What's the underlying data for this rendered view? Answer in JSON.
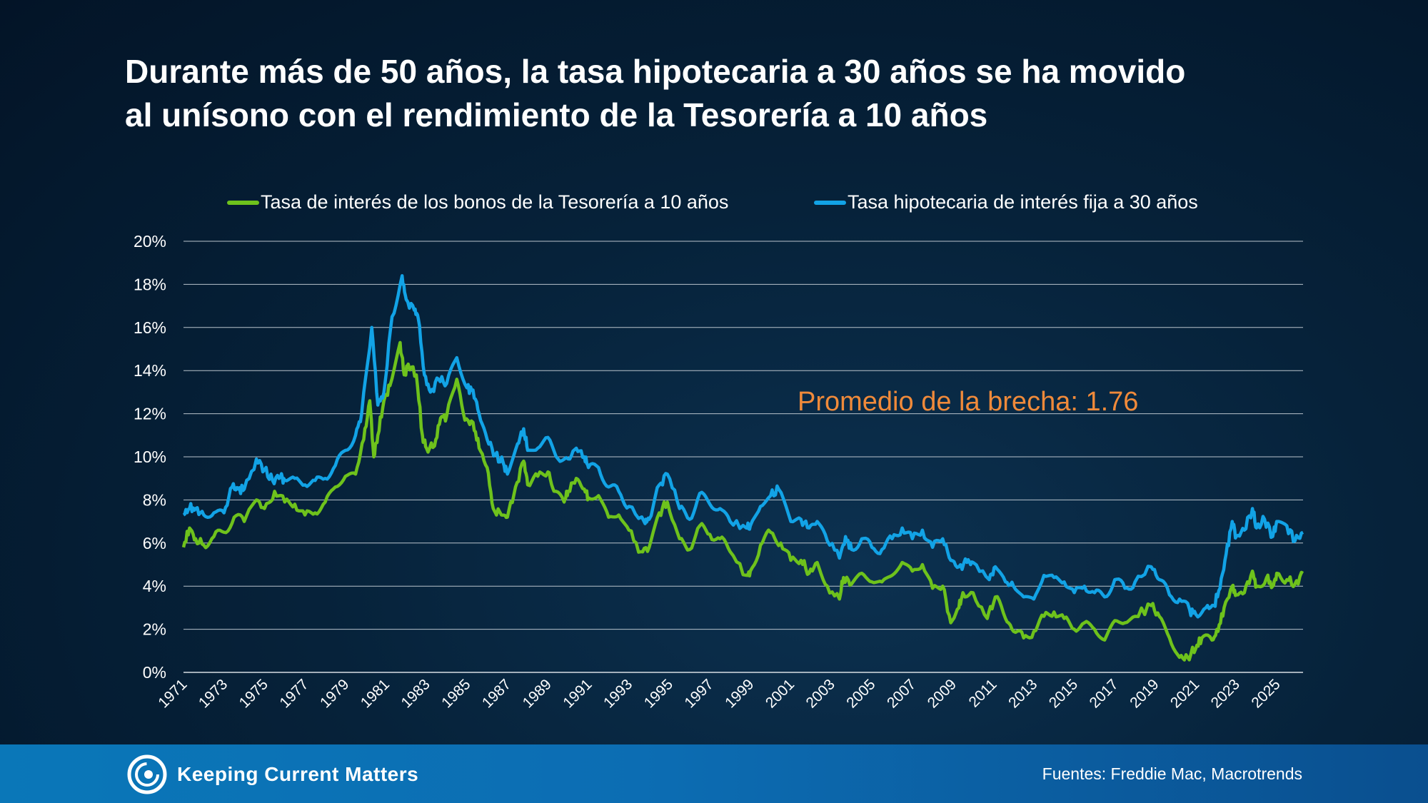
{
  "header": {
    "title_line1": "Durante más de 50 años, la tasa hipotecaria a 30 años se ha movido",
    "title_line2": "al unísono con el rendimiento de la Tesorería a 10 años"
  },
  "footer": {
    "brand": "Keeping Current Matters",
    "sources": "Fuentes: Freddie Mac, Macrotrends"
  },
  "colors": {
    "treasury": "#6ec21c",
    "mortgage": "#12a3e6",
    "annotation": "#f08a3a",
    "gridline": "#b9c3cc"
  },
  "chart_data": {
    "type": "line",
    "title": "",
    "xlabel": "",
    "ylabel": "",
    "xlim": [
      1971,
      2026.3
    ],
    "ylim": [
      0,
      20
    ],
    "y_ticks": [
      "0%",
      "2%",
      "4%",
      "6%",
      "8%",
      "10%",
      "12%",
      "14%",
      "16%",
      "18%",
      "20%"
    ],
    "x_ticks": [
      "1971",
      "1973",
      "1975",
      "1977",
      "1979",
      "1981",
      "1983",
      "1985",
      "1987",
      "1989",
      "1991",
      "1993",
      "1995",
      "1997",
      "1999",
      "2001",
      "2003",
      "2005",
      "2007",
      "2009",
      "2011",
      "2013",
      "2015",
      "2017",
      "2019",
      "2021",
      "2023",
      "2025"
    ],
    "grid": true,
    "legend_position": "top-center",
    "annotation": "Promedio de la brecha: 1.76",
    "series": [
      {
        "name": "Tasa de interés de los bonos de la Tesorería a 10 años",
        "color": "#6ec21c",
        "points": [
          [
            1971.0,
            5.8
          ],
          [
            1971.3,
            6.7
          ],
          [
            1971.6,
            6.2
          ],
          [
            1972.0,
            5.9
          ],
          [
            1972.5,
            6.3
          ],
          [
            1973.0,
            6.5
          ],
          [
            1973.5,
            7.2
          ],
          [
            1974.0,
            7.0
          ],
          [
            1974.6,
            8.0
          ],
          [
            1975.0,
            7.6
          ],
          [
            1975.5,
            8.4
          ],
          [
            1976.0,
            7.9
          ],
          [
            1976.5,
            7.8
          ],
          [
            1977.0,
            7.3
          ],
          [
            1977.5,
            7.4
          ],
          [
            1978.0,
            7.9
          ],
          [
            1978.5,
            8.6
          ],
          [
            1979.0,
            9.1
          ],
          [
            1979.5,
            9.2
          ],
          [
            1979.9,
            10.8
          ],
          [
            1980.2,
            12.6
          ],
          [
            1980.4,
            10.0
          ],
          [
            1980.6,
            11.0
          ],
          [
            1980.9,
            12.6
          ],
          [
            1981.2,
            13.3
          ],
          [
            1981.7,
            15.3
          ],
          [
            1981.9,
            13.8
          ],
          [
            1982.1,
            14.3
          ],
          [
            1982.5,
            13.8
          ],
          [
            1982.8,
            11.0
          ],
          [
            1983.0,
            10.4
          ],
          [
            1983.4,
            10.5
          ],
          [
            1983.7,
            11.8
          ],
          [
            1984.0,
            11.9
          ],
          [
            1984.5,
            13.6
          ],
          [
            1984.9,
            11.7
          ],
          [
            1985.3,
            11.6
          ],
          [
            1985.6,
            10.4
          ],
          [
            1986.0,
            9.5
          ],
          [
            1986.3,
            7.6
          ],
          [
            1986.7,
            7.3
          ],
          [
            1987.0,
            7.2
          ],
          [
            1987.4,
            8.6
          ],
          [
            1987.8,
            9.8
          ],
          [
            1988.0,
            8.7
          ],
          [
            1988.5,
            9.1
          ],
          [
            1989.0,
            9.3
          ],
          [
            1989.3,
            8.4
          ],
          [
            1989.8,
            7.9
          ],
          [
            1990.0,
            8.4
          ],
          [
            1990.4,
            9.0
          ],
          [
            1990.8,
            8.5
          ],
          [
            1991.0,
            8.1
          ],
          [
            1991.5,
            8.2
          ],
          [
            1992.0,
            7.2
          ],
          [
            1992.5,
            7.3
          ],
          [
            1993.0,
            6.6
          ],
          [
            1993.6,
            5.6
          ],
          [
            1994.0,
            5.8
          ],
          [
            1994.5,
            7.4
          ],
          [
            1994.9,
            7.9
          ],
          [
            1995.5,
            6.2
          ],
          [
            1996.0,
            5.7
          ],
          [
            1996.5,
            6.8
          ],
          [
            1997.0,
            6.4
          ],
          [
            1997.5,
            6.2
          ],
          [
            1998.0,
            5.6
          ],
          [
            1998.8,
            4.5
          ],
          [
            1999.0,
            4.7
          ],
          [
            1999.5,
            5.9
          ],
          [
            2000.0,
            6.5
          ],
          [
            2000.5,
            6.0
          ],
          [
            2001.0,
            5.2
          ],
          [
            2001.5,
            5.2
          ],
          [
            2001.9,
            4.6
          ],
          [
            2002.3,
            5.1
          ],
          [
            2002.8,
            4.0
          ],
          [
            2003.4,
            3.4
          ],
          [
            2003.6,
            4.4
          ],
          [
            2004.0,
            4.1
          ],
          [
            2004.5,
            4.6
          ],
          [
            2005.0,
            4.2
          ],
          [
            2005.5,
            4.2
          ],
          [
            2006.0,
            4.5
          ],
          [
            2006.5,
            5.1
          ],
          [
            2007.0,
            4.7
          ],
          [
            2007.5,
            5.0
          ],
          [
            2008.0,
            3.9
          ],
          [
            2008.5,
            4.0
          ],
          [
            2008.9,
            2.3
          ],
          [
            2009.3,
            3.0
          ],
          [
            2009.5,
            3.7
          ],
          [
            2010.0,
            3.7
          ],
          [
            2010.7,
            2.5
          ],
          [
            2011.1,
            3.5
          ],
          [
            2011.6,
            2.5
          ],
          [
            2012.0,
            1.9
          ],
          [
            2012.5,
            1.6
          ],
          [
            2013.0,
            1.9
          ],
          [
            2013.5,
            2.6
          ],
          [
            2014.0,
            2.8
          ],
          [
            2014.5,
            2.5
          ],
          [
            2015.0,
            2.0
          ],
          [
            2015.5,
            2.3
          ],
          [
            2016.0,
            2.0
          ],
          [
            2016.5,
            1.5
          ],
          [
            2017.0,
            2.4
          ],
          [
            2017.5,
            2.3
          ],
          [
            2018.0,
            2.6
          ],
          [
            2018.8,
            3.1
          ],
          [
            2019.2,
            2.6
          ],
          [
            2019.7,
            1.6
          ],
          [
            2020.2,
            0.7
          ],
          [
            2020.6,
            0.7
          ],
          [
            2021.0,
            1.1
          ],
          [
            2021.3,
            1.6
          ],
          [
            2021.8,
            1.5
          ],
          [
            2022.1,
            1.9
          ],
          [
            2022.4,
            3.0
          ],
          [
            2022.8,
            4.0
          ],
          [
            2023.0,
            3.6
          ],
          [
            2023.4,
            3.7
          ],
          [
            2023.8,
            4.7
          ],
          [
            2024.0,
            4.0
          ],
          [
            2024.5,
            4.4
          ],
          [
            2024.8,
            4.0
          ],
          [
            2025.0,
            4.6
          ],
          [
            2025.5,
            4.3
          ],
          [
            2025.9,
            4.1
          ],
          [
            2026.3,
            4.6
          ]
        ]
      },
      {
        "name": "Tasa hipotecaria de interés fija a 30 años",
        "color": "#12a3e6",
        "points": [
          [
            1971.0,
            7.3
          ],
          [
            1971.3,
            7.6
          ],
          [
            1971.6,
            7.6
          ],
          [
            1972.0,
            7.3
          ],
          [
            1972.5,
            7.4
          ],
          [
            1973.0,
            7.4
          ],
          [
            1973.4,
            8.6
          ],
          [
            1973.7,
            8.5
          ],
          [
            1974.0,
            8.5
          ],
          [
            1974.6,
            9.9
          ],
          [
            1975.0,
            9.4
          ],
          [
            1975.4,
            8.9
          ],
          [
            1975.8,
            9.1
          ],
          [
            1976.0,
            8.9
          ],
          [
            1976.5,
            9.0
          ],
          [
            1977.0,
            8.7
          ],
          [
            1977.5,
            8.9
          ],
          [
            1978.0,
            9.0
          ],
          [
            1978.5,
            9.6
          ],
          [
            1979.0,
            10.3
          ],
          [
            1979.5,
            11.0
          ],
          [
            1979.8,
            12.0
          ],
          [
            1980.3,
            16.0
          ],
          [
            1980.6,
            12.4
          ],
          [
            1980.9,
            13.0
          ],
          [
            1981.3,
            16.5
          ],
          [
            1981.8,
            18.4
          ],
          [
            1982.0,
            17.3
          ],
          [
            1982.4,
            16.8
          ],
          [
            1982.6,
            16.4
          ],
          [
            1982.9,
            13.8
          ],
          [
            1983.2,
            13.0
          ],
          [
            1983.6,
            13.6
          ],
          [
            1984.0,
            13.4
          ],
          [
            1984.5,
            14.6
          ],
          [
            1985.0,
            13.2
          ],
          [
            1985.3,
            13.1
          ],
          [
            1985.6,
            12.0
          ],
          [
            1986.0,
            10.8
          ],
          [
            1986.4,
            10.1
          ],
          [
            1986.8,
            9.7
          ],
          [
            1987.0,
            9.2
          ],
          [
            1987.5,
            10.6
          ],
          [
            1987.8,
            11.3
          ],
          [
            1988.0,
            10.3
          ],
          [
            1988.5,
            10.4
          ],
          [
            1989.0,
            10.9
          ],
          [
            1989.5,
            9.9
          ],
          [
            1990.0,
            9.9
          ],
          [
            1990.4,
            10.4
          ],
          [
            1990.8,
            10.0
          ],
          [
            1991.0,
            9.5
          ],
          [
            1991.5,
            9.5
          ],
          [
            1992.0,
            8.6
          ],
          [
            1992.5,
            8.4
          ],
          [
            1993.0,
            7.7
          ],
          [
            1993.8,
            6.9
          ],
          [
            1994.0,
            7.1
          ],
          [
            1994.5,
            8.7
          ],
          [
            1994.9,
            9.2
          ],
          [
            1995.5,
            7.6
          ],
          [
            1996.0,
            7.1
          ],
          [
            1996.5,
            8.3
          ],
          [
            1997.0,
            7.8
          ],
          [
            1997.5,
            7.6
          ],
          [
            1998.0,
            7.0
          ],
          [
            1998.8,
            6.7
          ],
          [
            1999.0,
            6.8
          ],
          [
            1999.5,
            7.7
          ],
          [
            2000.0,
            8.2
          ],
          [
            2000.4,
            8.5
          ],
          [
            2001.0,
            7.0
          ],
          [
            2001.5,
            7.1
          ],
          [
            2001.9,
            6.7
          ],
          [
            2002.3,
            7.0
          ],
          [
            2002.8,
            6.1
          ],
          [
            2003.4,
            5.3
          ],
          [
            2003.7,
            6.3
          ],
          [
            2004.0,
            5.7
          ],
          [
            2004.5,
            6.2
          ],
          [
            2005.0,
            5.8
          ],
          [
            2005.5,
            5.7
          ],
          [
            2006.0,
            6.2
          ],
          [
            2006.5,
            6.7
          ],
          [
            2007.0,
            6.2
          ],
          [
            2007.5,
            6.6
          ],
          [
            2008.0,
            5.8
          ],
          [
            2008.5,
            6.2
          ],
          [
            2008.9,
            5.2
          ],
          [
            2009.3,
            4.9
          ],
          [
            2009.7,
            5.1
          ],
          [
            2010.0,
            5.1
          ],
          [
            2010.8,
            4.3
          ],
          [
            2011.1,
            4.9
          ],
          [
            2011.6,
            4.2
          ],
          [
            2012.0,
            4.0
          ],
          [
            2012.5,
            3.5
          ],
          [
            2013.0,
            3.4
          ],
          [
            2013.5,
            4.5
          ],
          [
            2014.0,
            4.4
          ],
          [
            2014.5,
            4.2
          ],
          [
            2015.0,
            3.7
          ],
          [
            2015.5,
            4.0
          ],
          [
            2016.0,
            3.7
          ],
          [
            2016.5,
            3.5
          ],
          [
            2017.0,
            4.3
          ],
          [
            2017.5,
            3.9
          ],
          [
            2018.0,
            4.2
          ],
          [
            2018.8,
            4.9
          ],
          [
            2019.2,
            4.3
          ],
          [
            2019.7,
            3.6
          ],
          [
            2020.2,
            3.4
          ],
          [
            2020.7,
            2.9
          ],
          [
            2021.0,
            2.7
          ],
          [
            2021.5,
            3.0
          ],
          [
            2021.9,
            3.1
          ],
          [
            2022.2,
            3.9
          ],
          [
            2022.5,
            5.5
          ],
          [
            2022.8,
            7.0
          ],
          [
            2023.0,
            6.3
          ],
          [
            2023.4,
            6.6
          ],
          [
            2023.8,
            7.6
          ],
          [
            2024.0,
            6.7
          ],
          [
            2024.4,
            7.1
          ],
          [
            2024.8,
            6.3
          ],
          [
            2025.0,
            7.0
          ],
          [
            2025.5,
            6.8
          ],
          [
            2025.9,
            6.1
          ],
          [
            2026.3,
            6.5
          ]
        ]
      }
    ]
  }
}
